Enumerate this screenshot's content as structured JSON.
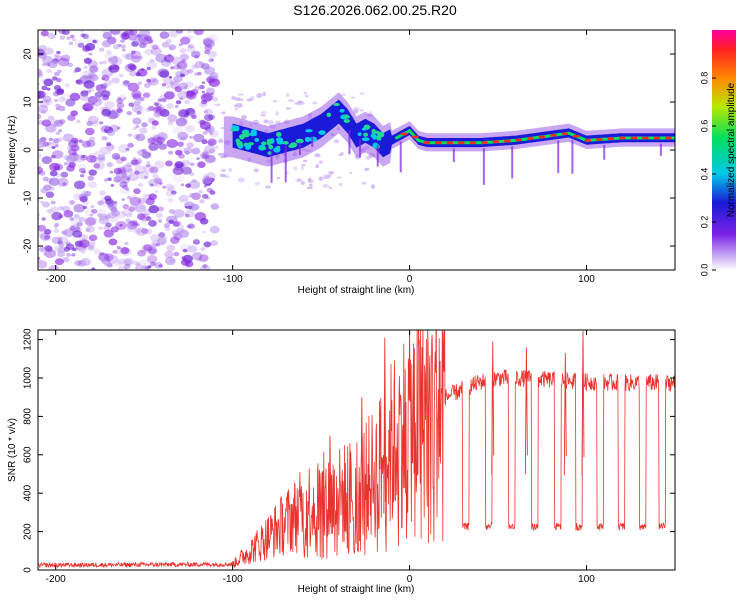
{
  "title": "S126.2026.062.00.25.R20",
  "colors": {
    "snr_line": "#e8332e",
    "spec_scatter": "#8a2be2",
    "axis": "#000000"
  },
  "chart_data": [
    {
      "type": "heatmap",
      "name": "spectrogram",
      "xlabel": "Height of straight line (km)",
      "ylabel": "Frequency (Hz)",
      "xlim": [
        -210,
        150
      ],
      "ylim": [
        -25,
        25
      ],
      "xticks": [
        -200,
        -100,
        0,
        100
      ],
      "xtick_labels": [
        "-200",
        "-100",
        "0",
        "100"
      ],
      "yticks": [
        -20,
        -10,
        0,
        10,
        20
      ],
      "ytick_labels": [
        "-20",
        "-10",
        "0",
        "10",
        "20"
      ],
      "ridge": {
        "description_points_x": [
          -100,
          -90,
          -80,
          -70,
          -60,
          -50,
          -40,
          -35,
          -30,
          -25,
          -20,
          -15,
          -10,
          -5,
          0,
          5,
          10,
          20,
          40,
          60,
          80,
          90,
          100,
          120,
          150
        ],
        "description_points_y": [
          3,
          2,
          1,
          2,
          3,
          5,
          8,
          6,
          3,
          4,
          3,
          1,
          2,
          3,
          4,
          2,
          1.5,
          1.5,
          1.5,
          2,
          3,
          3.5,
          2,
          2.5,
          2.5
        ]
      },
      "colorbar": {
        "label": "Normalized spectral amplitude",
        "range": [
          0,
          1
        ],
        "ticks": [
          0.0,
          0.2,
          0.4,
          0.6,
          0.8
        ],
        "tick_labels": [
          "0.0",
          "0.2",
          "0.4",
          "0.6",
          "0.8"
        ]
      }
    },
    {
      "type": "line",
      "name": "snr",
      "xlabel": "Height of straight line (km)",
      "ylabel": "SNR (10 * v/v)",
      "xlim": [
        -210,
        150
      ],
      "ylim": [
        0,
        1250
      ],
      "xticks": [
        -200,
        -100,
        0,
        100
      ],
      "xtick_labels": [
        "-200",
        "-100",
        "0",
        "100"
      ],
      "yticks": [
        0,
        200,
        400,
        600,
        800,
        1000,
        1200
      ],
      "ytick_labels": [
        "0",
        "200",
        "400",
        "600",
        "800",
        "1000",
        "1200"
      ],
      "profile_x": [
        -210,
        -100,
        -90,
        -70,
        -55,
        -40,
        -30,
        -20,
        -10,
        0,
        10,
        20,
        30,
        40,
        50,
        60,
        80,
        100,
        120,
        150
      ],
      "profile_y": [
        25,
        30,
        100,
        250,
        350,
        380,
        420,
        500,
        650,
        780,
        850,
        900,
        940,
        980,
        1000,
        1000,
        990,
        980,
        975,
        975
      ],
      "dropouts_x": [
        30,
        43,
        56,
        69,
        82,
        94,
        106,
        118,
        130,
        141
      ],
      "dropout_level": 225,
      "spikes": [
        {
          "x": -14,
          "y": 1210
        },
        {
          "x": 98,
          "y": 1245
        },
        {
          "x": -27,
          "y": 900
        },
        {
          "x": -45,
          "y": 700
        },
        {
          "x": 47,
          "y": 1190
        },
        {
          "x": 66,
          "y": 1160
        },
        {
          "x": 88,
          "y": 1130
        }
      ]
    }
  ]
}
